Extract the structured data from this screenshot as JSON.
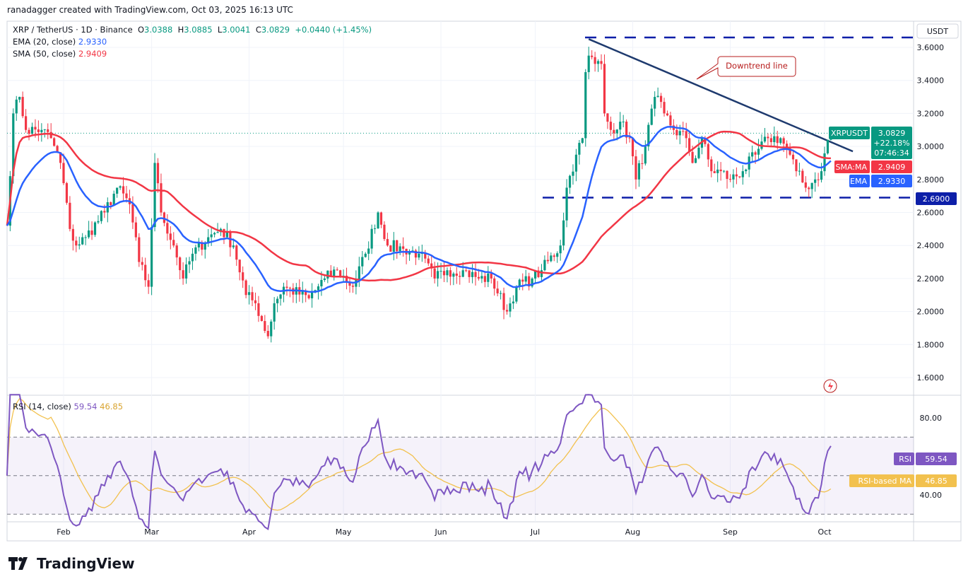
{
  "header": {
    "credit": "ranadagger created with TradingView.com, Oct 03, 2025 16:13 UTC"
  },
  "legend": {
    "symbol": "XRP / TetherUS · 1D · Binance",
    "o_label": "O",
    "o": "3.0388",
    "h_label": "H",
    "h": "3.0885",
    "l_label": "L",
    "l": "3.0041",
    "c_label": "C",
    "c": "3.0829",
    "change": "+0.0440 (+1.45%)",
    "ema_label": "EMA (20, close)",
    "ema_value": "2.9330",
    "sma_label": "SMA (50, close)",
    "sma_value": "2.9409",
    "rsi_label": "RSI (14, close)",
    "rsi_value": "59.54",
    "rsi_ma_value": "46.85"
  },
  "axis": {
    "currency": "USDT",
    "price_ticks": [
      "3.6000",
      "3.4000",
      "3.2000",
      "3.0000",
      "2.8000",
      "2.6000",
      "2.4000",
      "2.2000",
      "2.0000",
      "1.8000",
      "1.6000"
    ],
    "rsi_ticks": [
      "80.00",
      "40.00"
    ],
    "months": [
      "Feb",
      "Mar",
      "Apr",
      "May",
      "Jun",
      "Jul",
      "Aug",
      "Sep",
      "Oct"
    ]
  },
  "tags": {
    "symbol": "XRPUSDT",
    "price": "3.0829",
    "pct": "+22.18%",
    "countdown": "07:46:34",
    "sma_name": "SMA:MA",
    "sma": "2.9409",
    "ema_name": "EMA",
    "ema": "2.9330",
    "support": "2.6900",
    "rsi_name": "RSI",
    "rsi": "59.54",
    "rsi_ma_name": "RSI-based MA",
    "rsi_ma": "46.85"
  },
  "annotation": {
    "text": "Downtrend line"
  },
  "logo": "TradingView",
  "colors": {
    "up": "#089981",
    "down": "#f23645",
    "ema": "#2962ff",
    "sma": "#f23645",
    "rsi": "#7e57c2",
    "rsi_ma": "#f2c14e",
    "level": "#0d1fa8",
    "trend": "#1e3a6e"
  },
  "chart_data": {
    "type": "candlestick",
    "ylim": [
      1.55,
      3.75
    ],
    "resistance": 3.66,
    "support": 2.69,
    "downtrend_line": [
      [
        "2025-07-18",
        3.65
      ],
      [
        "2025-10-10",
        2.97
      ]
    ],
    "rsi_bands": [
      70,
      50,
      30
    ],
    "closes": [
      [
        "2025-01-14",
        2.52
      ],
      [
        "2025-01-16",
        3.2
      ],
      [
        "2025-01-18",
        3.3
      ],
      [
        "2025-01-20",
        3.1
      ],
      [
        "2025-01-25",
        3.1
      ],
      [
        "2025-01-28",
        3.05
      ],
      [
        "2025-01-31",
        2.9
      ],
      [
        "2025-02-03",
        2.5
      ],
      [
        "2025-02-05",
        2.4
      ],
      [
        "2025-02-08",
        2.45
      ],
      [
        "2025-02-14",
        2.6
      ],
      [
        "2025-02-18",
        2.75
      ],
      [
        "2025-02-22",
        2.65
      ],
      [
        "2025-02-25",
        2.3
      ],
      [
        "2025-02-28",
        2.15
      ],
      [
        "2025-03-02",
        2.9
      ],
      [
        "2025-03-04",
        2.6
      ],
      [
        "2025-03-08",
        2.4
      ],
      [
        "2025-03-11",
        2.2
      ],
      [
        "2025-03-14",
        2.35
      ],
      [
        "2025-03-19",
        2.45
      ],
      [
        "2025-03-23",
        2.5
      ],
      [
        "2025-03-27",
        2.4
      ],
      [
        "2025-03-31",
        2.1
      ],
      [
        "2025-04-03",
        2.05
      ],
      [
        "2025-04-07",
        1.85
      ],
      [
        "2025-04-09",
        2.05
      ],
      [
        "2025-04-12",
        2.15
      ],
      [
        "2025-04-20",
        2.08
      ],
      [
        "2025-04-25",
        2.2
      ],
      [
        "2025-04-29",
        2.25
      ],
      [
        "2025-05-04",
        2.15
      ],
      [
        "2025-05-08",
        2.35
      ],
      [
        "2025-05-12",
        2.6
      ],
      [
        "2025-05-15",
        2.4
      ],
      [
        "2025-05-20",
        2.38
      ],
      [
        "2025-05-25",
        2.35
      ],
      [
        "2025-05-30",
        2.2
      ],
      [
        "2025-06-03",
        2.25
      ],
      [
        "2025-06-08",
        2.25
      ],
      [
        "2025-06-13",
        2.2
      ],
      [
        "2025-06-17",
        2.2
      ],
      [
        "2025-06-22",
        2.0
      ],
      [
        "2025-06-25",
        2.15
      ],
      [
        "2025-06-30",
        2.2
      ],
      [
        "2025-07-03",
        2.25
      ],
      [
        "2025-07-09",
        2.4
      ],
      [
        "2025-07-11",
        2.75
      ],
      [
        "2025-07-14",
        2.95
      ],
      [
        "2025-07-16",
        3.05
      ],
      [
        "2025-07-17",
        3.45
      ],
      [
        "2025-07-18",
        3.55
      ],
      [
        "2025-07-20",
        3.5
      ],
      [
        "2025-07-22",
        3.5
      ],
      [
        "2025-07-23",
        3.2
      ],
      [
        "2025-07-25",
        3.1
      ],
      [
        "2025-07-28",
        3.15
      ],
      [
        "2025-07-31",
        3.05
      ],
      [
        "2025-08-02",
        2.8
      ],
      [
        "2025-08-05",
        3.0
      ],
      [
        "2025-08-08",
        3.3
      ],
      [
        "2025-08-11",
        3.2
      ],
      [
        "2025-08-14",
        3.1
      ],
      [
        "2025-08-18",
        3.05
      ],
      [
        "2025-08-20",
        2.9
      ],
      [
        "2025-08-23",
        3.05
      ],
      [
        "2025-08-26",
        2.85
      ],
      [
        "2025-08-29",
        2.85
      ],
      [
        "2025-09-01",
        2.8
      ],
      [
        "2025-09-05",
        2.85
      ],
      [
        "2025-09-09",
        2.95
      ],
      [
        "2025-09-13",
        3.05
      ],
      [
        "2025-09-17",
        3.05
      ],
      [
        "2025-09-20",
        2.95
      ],
      [
        "2025-09-22",
        2.85
      ],
      [
        "2025-09-25",
        2.75
      ],
      [
        "2025-09-28",
        2.8
      ],
      [
        "2025-09-30",
        2.85
      ],
      [
        "2025-10-02",
        3.04
      ],
      [
        "2025-10-03",
        3.08
      ]
    ]
  }
}
